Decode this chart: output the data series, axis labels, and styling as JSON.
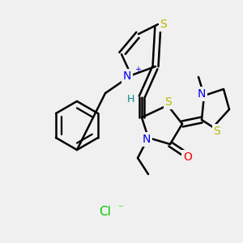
{
  "bg_color": "#f0f0f0",
  "bond_color": "#000000",
  "bond_width": 1.8,
  "atom_colors": {
    "S": "#b8b800",
    "N": "#0000ee",
    "O": "#ee0000",
    "H": "#008888",
    "Cl": "#00cc00",
    "C": "#000000"
  },
  "fig_width": 3.0,
  "fig_height": 3.0,
  "dpi": 100
}
